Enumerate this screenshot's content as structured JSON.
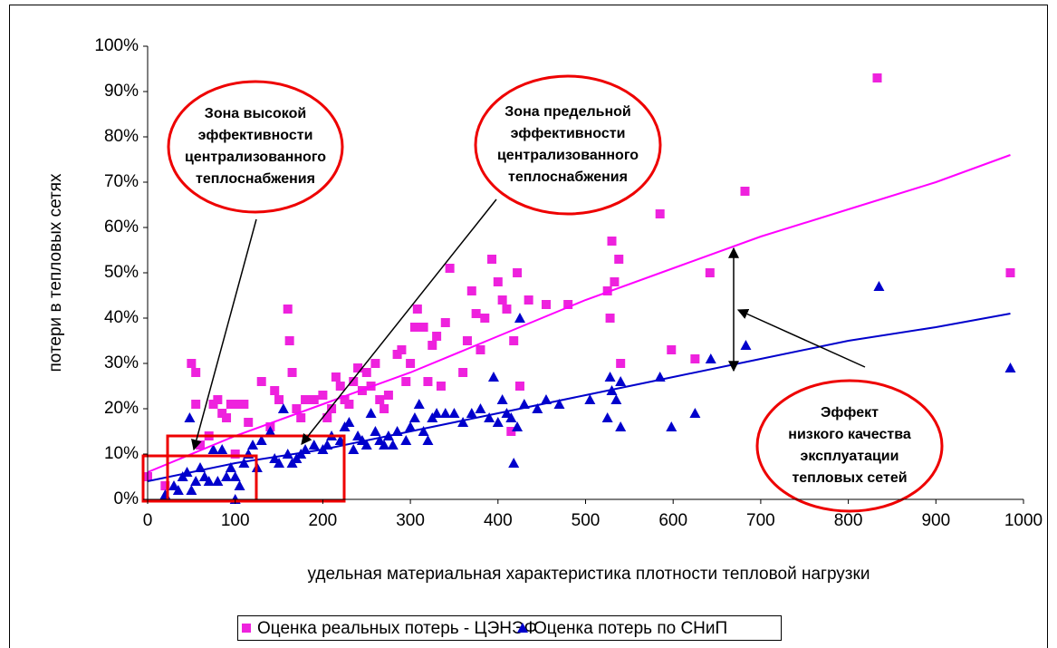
{
  "chart_data": {
    "type": "scatter",
    "xlabel": "удельная материальная характеристика плотности тепловой нагрузки",
    "ylabel": "потери в тепловых сетях",
    "xlim": [
      0,
      1000
    ],
    "xticks": [
      0,
      100,
      200,
      300,
      400,
      500,
      600,
      700,
      800,
      900,
      1000
    ],
    "ylim": [
      0,
      100
    ],
    "yticks": [
      {
        "value": 0,
        "label": "0%"
      },
      {
        "value": 10,
        "label": "10%"
      },
      {
        "value": 20,
        "label": "20%"
      },
      {
        "value": 30,
        "label": "30%"
      },
      {
        "value": 40,
        "label": "40%"
      },
      {
        "value": 50,
        "label": "50%"
      },
      {
        "value": 60,
        "label": "60%"
      },
      {
        "value": 70,
        "label": "70%"
      },
      {
        "value": 80,
        "label": "80%"
      },
      {
        "value": 90,
        "label": "90%"
      },
      {
        "value": 100,
        "label": "100%"
      }
    ],
    "grid": false,
    "legend": "bottom",
    "series": [
      {
        "name": "Оценка реальных потерь - ЦЭНЭФ",
        "color": "#ee22dd",
        "marker": "square",
        "x": [
          0,
          20,
          50,
          55,
          55,
          60,
          70,
          75,
          80,
          85,
          90,
          95,
          100,
          100,
          110,
          115,
          130,
          140,
          145,
          150,
          160,
          162,
          165,
          170,
          175,
          180,
          190,
          200,
          205,
          210,
          215,
          220,
          225,
          230,
          235,
          240,
          245,
          250,
          255,
          260,
          265,
          270,
          275,
          285,
          290,
          295,
          300,
          305,
          308,
          315,
          320,
          325,
          330,
          335,
          340,
          345,
          360,
          365,
          370,
          375,
          380,
          385,
          393,
          400,
          405,
          410,
          415,
          418,
          422,
          425,
          435,
          455,
          480,
          525,
          528,
          530,
          533,
          538,
          540,
          585,
          598,
          625,
          642,
          682,
          833,
          985
        ],
        "values": [
          5,
          3,
          30,
          28,
          21,
          12,
          14,
          21,
          22,
          19,
          18,
          21,
          21,
          10,
          21,
          17,
          26,
          16,
          24,
          22,
          42,
          35,
          28,
          20,
          18,
          22,
          22,
          23,
          18,
          20,
          27,
          25,
          22,
          21,
          26,
          29,
          24,
          28,
          25,
          30,
          22,
          20,
          23,
          32,
          33,
          26,
          30,
          38,
          42,
          38,
          26,
          34,
          36,
          25,
          39,
          51,
          28,
          35,
          46,
          41,
          33,
          40,
          53,
          48,
          44,
          42,
          15,
          35,
          50,
          25,
          44,
          43,
          43,
          46,
          40,
          57,
          48,
          53,
          30,
          63,
          33,
          31,
          50,
          68,
          93,
          50
        ]
      },
      {
        "name": "Оценка потерь по СНиП",
        "color": "#0000cc",
        "marker": "triangle",
        "x": [
          20,
          30,
          35,
          40,
          45,
          48,
          50,
          55,
          60,
          65,
          70,
          75,
          80,
          85,
          90,
          95,
          100,
          100,
          105,
          110,
          115,
          120,
          125,
          130,
          140,
          145,
          150,
          155,
          160,
          165,
          170,
          175,
          180,
          190,
          200,
          205,
          210,
          220,
          225,
          230,
          235,
          240,
          245,
          250,
          255,
          260,
          265,
          270,
          275,
          280,
          285,
          295,
          300,
          305,
          310,
          315,
          320,
          325,
          330,
          340,
          350,
          360,
          370,
          380,
          390,
          395,
          400,
          405,
          410,
          415,
          418,
          422,
          425,
          430,
          445,
          455,
          470,
          505,
          525,
          528,
          530,
          535,
          540,
          540,
          585,
          598,
          625,
          643,
          683,
          835,
          985
        ],
        "values": [
          1,
          3,
          2,
          5,
          6,
          18,
          2,
          4,
          7,
          5,
          4,
          11,
          4,
          11,
          5,
          7,
          0,
          5,
          3,
          8,
          10,
          12,
          7,
          13,
          15,
          9,
          8,
          20,
          10,
          8,
          9,
          10,
          11,
          12,
          11,
          12,
          14,
          13,
          16,
          17,
          11,
          14,
          13,
          12,
          19,
          15,
          13,
          12,
          14,
          12,
          15,
          13,
          16,
          18,
          21,
          15,
          13,
          18,
          19,
          19,
          19,
          17,
          19,
          20,
          18,
          27,
          17,
          22,
          19,
          18,
          8,
          16,
          40,
          21,
          20,
          22,
          21,
          22,
          18,
          27,
          24,
          22,
          16,
          26,
          27,
          16,
          19,
          31,
          34,
          47,
          29
        ]
      }
    ],
    "trendlines": [
      {
        "color": "#ff00ff",
        "x": [
          0,
          100,
          200,
          300,
          400,
          500,
          600,
          700,
          800,
          900,
          985
        ],
        "values": [
          6,
          14,
          21,
          28,
          36,
          44,
          51,
          58,
          64,
          70,
          76
        ]
      },
      {
        "color": "#0000cc",
        "x": [
          0,
          100,
          200,
          300,
          400,
          500,
          600,
          700,
          800,
          900,
          985
        ],
        "values": [
          4,
          8,
          11,
          15,
          19,
          23,
          27,
          31,
          35,
          38,
          41
        ]
      }
    ],
    "annotations": [
      [
        "Зона высокой",
        "эффективности",
        "централизованного",
        "теплоснабжения"
      ],
      [
        "Зона предельной",
        "эффективности",
        "централизованного",
        "теплоснабжения"
      ],
      [
        "Эффект",
        "низкого качества",
        "эксплуатации",
        "тепловых сетей"
      ]
    ]
  }
}
